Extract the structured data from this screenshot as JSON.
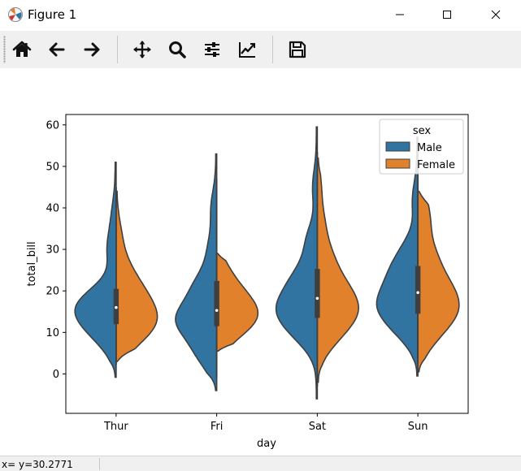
{
  "window": {
    "title": "Figure 1"
  },
  "toolbar": {
    "buttons": [
      {
        "name": "home-button",
        "icon": "home-icon"
      },
      {
        "name": "back-button",
        "icon": "arrow-left-icon"
      },
      {
        "name": "forward-button",
        "icon": "arrow-right-icon"
      },
      {
        "name": "pan-button",
        "icon": "move-icon"
      },
      {
        "name": "zoom-button",
        "icon": "magnifier-icon"
      },
      {
        "name": "subplots-button",
        "icon": "sliders-icon"
      },
      {
        "name": "axes-edit-button",
        "icon": "line-chart-icon"
      },
      {
        "name": "save-button",
        "icon": "floppy-disk-icon"
      }
    ]
  },
  "status": {
    "coords": "x= y=30.2771"
  },
  "chart_data": {
    "type": "violin",
    "xlabel": "day",
    "ylabel": "total_bill",
    "categories": [
      "Thur",
      "Fri",
      "Sat",
      "Sun"
    ],
    "ylim": [
      -9.5,
      62.5
    ],
    "yticks": [
      0,
      10,
      20,
      30,
      40,
      50,
      60
    ],
    "legend": {
      "title": "sex",
      "position": "top-right"
    },
    "split": true,
    "series": [
      {
        "name": "Male",
        "color": "#3274a1",
        "side": "left",
        "min": [
          -0.8,
          -4,
          -6,
          -0.5
        ],
        "max": [
          51,
          53,
          59.5,
          57
        ],
        "q1": [
          12,
          11.5,
          13.5,
          14.5
        ],
        "median": [
          16,
          15.3,
          18.2,
          19.6
        ],
        "q3": [
          20.5,
          22.4,
          25.3,
          26
        ]
      },
      {
        "name": "Female",
        "color": "#e1812c",
        "side": "right",
        "min": [
          3,
          5.5,
          -2,
          0.5
        ],
        "max": [
          44,
          29,
          52,
          44
        ],
        "q1": [
          12,
          11.5,
          13.5,
          14.5
        ],
        "median": [
          16,
          15.3,
          18.2,
          19.6
        ],
        "q3": [
          20.5,
          22.4,
          25.3,
          26
        ]
      }
    ],
    "grid": false
  }
}
